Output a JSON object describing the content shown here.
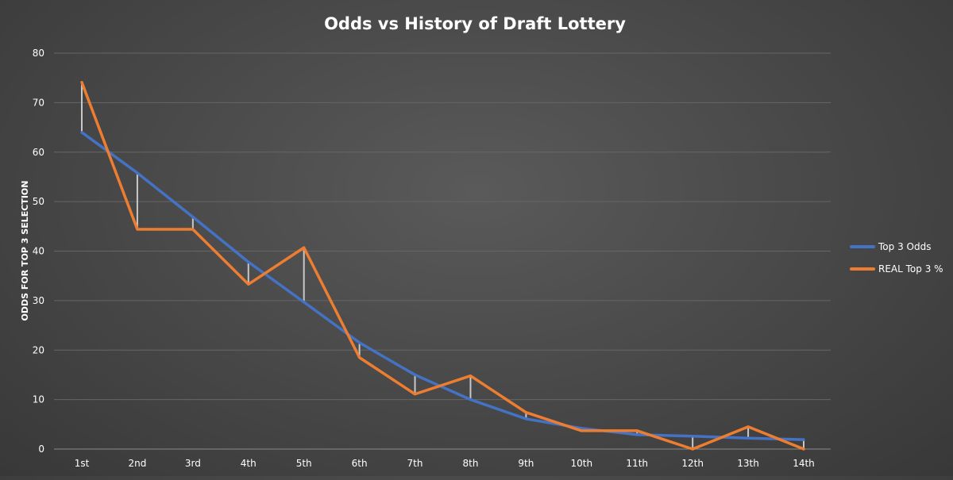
{
  "chart_data": {
    "type": "line",
    "title": "Odds vs History of Draft Lottery",
    "xlabel": "",
    "ylabel": "ODDS FOR TOP 3 SELECTION",
    "ylim": [
      0,
      80
    ],
    "yticks": [
      "0",
      "10",
      "20",
      "30",
      "40",
      "50",
      "60",
      "70",
      "80"
    ],
    "categories": [
      "1st",
      "2nd",
      "3rd",
      "4th",
      "5th",
      "6th",
      "7th",
      "8th",
      "9th",
      "10th",
      "11th",
      "12th",
      "13th",
      "14th"
    ],
    "series": [
      {
        "name": "Top 3 Odds",
        "color": "#4472c4",
        "values": [
          64.0,
          55.8,
          46.9,
          37.8,
          29.7,
          21.5,
          15.0,
          10.0,
          6.1,
          4.2,
          2.9,
          2.6,
          2.2,
          1.9
        ]
      },
      {
        "name": "REAL Top 3 %",
        "color": "#ed7d31",
        "values": [
          74.1,
          44.4,
          44.4,
          33.3,
          40.7,
          18.5,
          11.1,
          14.8,
          7.4,
          3.7,
          3.7,
          0.0,
          4.5,
          0.0
        ]
      }
    ],
    "grid": true,
    "difference_lines": true,
    "legend_position": "right"
  }
}
